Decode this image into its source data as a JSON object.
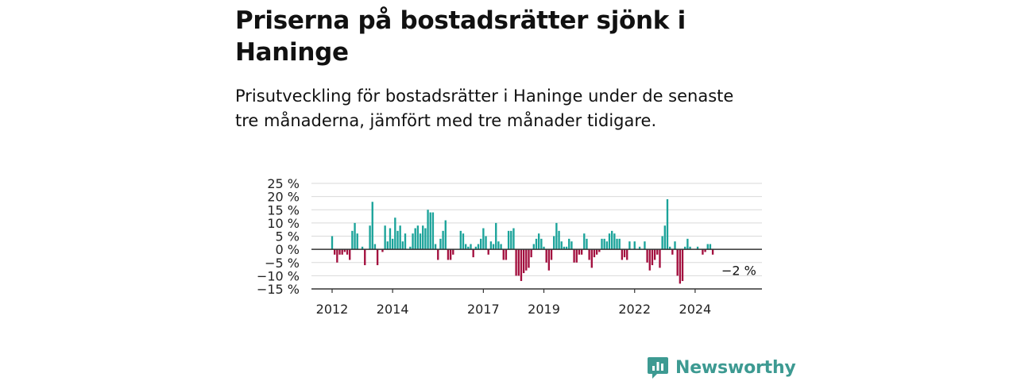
{
  "header": {
    "title": "Priserna på bostadsrätter sjönk i Haninge",
    "subtitle": "Prisutveckling för bostadsrätter i Haninge under de senaste tre månaderna, jämfört med tre månader tidigare."
  },
  "brand": {
    "name": "Newsworthy",
    "icon": "newsworthy-logo-icon",
    "color": "#3d9a92"
  },
  "colors": {
    "positive": "#1ba39a",
    "negative": "#a3103f",
    "grid": "#d9d9d9",
    "axis": "#333333"
  },
  "chart_data": {
    "type": "bar",
    "title": "",
    "xlabel": "",
    "ylabel": "",
    "x_start": "2012-01",
    "x_end": "2025-07",
    "ylim": [
      -15,
      25
    ],
    "yticks": [
      25,
      20,
      15,
      10,
      5,
      0,
      -5,
      -10,
      -15
    ],
    "ytick_labels": [
      "25 %",
      "20 %",
      "15 %",
      "10 %",
      "5 %",
      "0 %",
      "−5 %",
      "−10 %",
      "−15 %"
    ],
    "xticks": [
      {
        "label": "2012",
        "date": "2012-01"
      },
      {
        "label": "2014",
        "date": "2014-01"
      },
      {
        "label": "2017",
        "date": "2017-01"
      },
      {
        "label": "2019",
        "date": "2019-01"
      },
      {
        "label": "2022",
        "date": "2022-01"
      },
      {
        "label": "2024",
        "date": "2024-01"
      }
    ],
    "grid": true,
    "end_label": "−2 %",
    "values": [
      5,
      -2,
      -5,
      -2,
      -2,
      -1,
      -2,
      -4,
      7,
      10,
      6,
      0,
      1,
      -6,
      0,
      9,
      18,
      2,
      -6,
      0,
      -1,
      9,
      3,
      8,
      4,
      12,
      7,
      9,
      3,
      6,
      0,
      1,
      6,
      8,
      9,
      6,
      9,
      8,
      15,
      14,
      14,
      2,
      -4,
      4,
      7,
      11,
      -4,
      -4,
      -2,
      0,
      0,
      7,
      6,
      2,
      1,
      2,
      -3,
      1,
      2,
      4,
      8,
      5,
      -2,
      3,
      2,
      10,
      3,
      2,
      -4,
      -4,
      7,
      7,
      8,
      -10,
      -10,
      -12,
      -9,
      -8,
      -7,
      -3,
      2,
      4,
      6,
      4,
      1,
      -5,
      -8,
      -4,
      5,
      10,
      7,
      3,
      1,
      1,
      4,
      3,
      -5,
      -5,
      -2,
      -2,
      6,
      4,
      -4,
      -7,
      -3,
      -2,
      -1,
      4,
      4,
      3,
      6,
      7,
      6,
      4,
      4,
      -4,
      -3,
      -4,
      3,
      0,
      3,
      0,
      1,
      0,
      3,
      -5,
      -8,
      -6,
      -4,
      -2,
      -7,
      5,
      9,
      19,
      1,
      -2,
      3,
      -10,
      -13,
      -12,
      1,
      4,
      1,
      0,
      0,
      1,
      0,
      -2,
      -1,
      2,
      2,
      -2
    ]
  }
}
